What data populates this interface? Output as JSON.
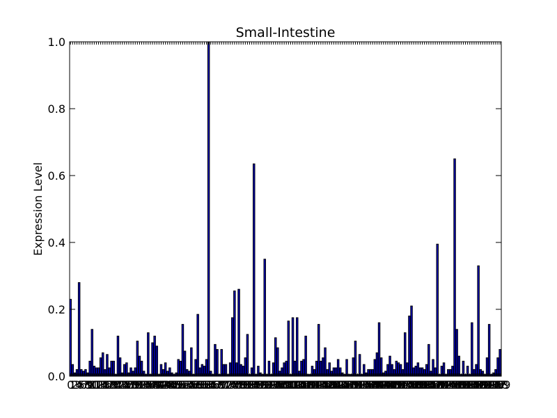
{
  "chart_data": {
    "type": "bar",
    "title": "Small-Intestine",
    "xlabel": "",
    "ylabel": "Expression Level",
    "ylim": [
      0,
      1.0
    ],
    "yticks": [
      "0.0",
      "0.2",
      "0.4",
      "0.6",
      "0.8",
      "1.0"
    ],
    "ytick_values": [
      0,
      0.2,
      0.4,
      0.6,
      0.8,
      1.0
    ],
    "grid": false,
    "legend": "none",
    "bar_color": "#0000bf",
    "edge_color": "#000000",
    "values": [
      0.23,
      0.035,
      0.01,
      0.02,
      0.28,
      0.02,
      0.015,
      0.02,
      0.01,
      0.045,
      0.14,
      0.03,
      0.025,
      0.025,
      0.055,
      0.07,
      0.02,
      0.065,
      0.025,
      0.045,
      0.045,
      0.005,
      0.12,
      0.055,
      0.01,
      0.035,
      0.04,
      0.01,
      0.025,
      0.015,
      0.025,
      0.105,
      0.06,
      0.045,
      0.015,
      0.005,
      0.13,
      0.005,
      0.1,
      0.12,
      0.09,
      0.005,
      0.035,
      0.02,
      0.04,
      0.015,
      0.025,
      0.01,
      0.005,
      0.01,
      0.05,
      0.045,
      0.155,
      0.075,
      0.02,
      0.015,
      0.085,
      0.005,
      0.05,
      0.185,
      0.025,
      0.035,
      0.03,
      0.05,
      1.0,
      0.015,
      0.005,
      0.095,
      0.08,
      0.005,
      0.08,
      0.035,
      0.035,
      0.005,
      0.04,
      0.175,
      0.255,
      0.04,
      0.26,
      0.035,
      0.03,
      0.055,
      0.125,
      0.005,
      0.025,
      0.635,
      0.005,
      0.03,
      0.01,
      0.005,
      0.35,
      0.005,
      0.045,
      0.005,
      0.04,
      0.115,
      0.085,
      0.015,
      0.025,
      0.04,
      0.045,
      0.165,
      0.005,
      0.175,
      0.045,
      0.175,
      0.015,
      0.045,
      0.05,
      0.12,
      0.005,
      0.005,
      0.03,
      0.02,
      0.045,
      0.155,
      0.045,
      0.055,
      0.085,
      0.02,
      0.04,
      0.015,
      0.025,
      0.025,
      0.05,
      0.025,
      0.01,
      0.005,
      0.05,
      0.005,
      0.005,
      0.055,
      0.105,
      0.005,
      0.065,
      0.005,
      0.035,
      0.01,
      0.02,
      0.02,
      0.02,
      0.05,
      0.07,
      0.16,
      0.055,
      0.01,
      0.015,
      0.035,
      0.06,
      0.035,
      0.02,
      0.045,
      0.04,
      0.035,
      0.02,
      0.13,
      0.04,
      0.18,
      0.21,
      0.025,
      0.03,
      0.04,
      0.025,
      0.025,
      0.02,
      0.035,
      0.095,
      0.015,
      0.05,
      0.025,
      0.395,
      0.005,
      0.03,
      0.04,
      0.005,
      0.02,
      0.02,
      0.03,
      0.65,
      0.14,
      0.06,
      0.005,
      0.045,
      0.005,
      0.03,
      0.005,
      0.16,
      0.02,
      0.035,
      0.33,
      0.02,
      0.015,
      0.005,
      0.055,
      0.155,
      0.005,
      0.01,
      0.02,
      0.055,
      0.08
    ],
    "xtick_labels": [
      "0",
      "1",
      "2",
      "3",
      "4",
      "5",
      "6",
      "7",
      "8",
      "9",
      "10",
      "11",
      "12",
      "13",
      "14",
      "15",
      "16",
      "17",
      "18",
      "19",
      "20",
      "21",
      "22",
      "23",
      "24",
      "25",
      "26",
      "27",
      "28",
      "29",
      "30",
      "31",
      "32",
      "33",
      "34",
      "35",
      "36",
      "37",
      "38",
      "39",
      "40",
      "41",
      "42",
      "43",
      "44",
      "45",
      "46",
      "47",
      "48",
      "49",
      "50",
      "51",
      "52",
      "53",
      "54",
      "55",
      "56",
      "57",
      "58",
      "59",
      "60",
      "61",
      "62",
      "63",
      "64",
      "65",
      "66",
      "67",
      "68",
      "69",
      "70",
      "71",
      "72",
      "73",
      "74",
      "75",
      "76",
      "77",
      "78",
      "79",
      "80",
      "81",
      "82",
      "83",
      "84",
      "85",
      "86",
      "87",
      "88",
      "89",
      "90",
      "91",
      "92",
      "93",
      "94",
      "95",
      "96",
      "97",
      "98",
      "99",
      "100",
      "101",
      "102",
      "103",
      "104",
      "105",
      "106",
      "107",
      "108",
      "109",
      "110",
      "111",
      "112",
      "113",
      "114",
      "115",
      "116",
      "117",
      "118",
      "119",
      "120",
      "121",
      "122",
      "123",
      "124",
      "125",
      "126",
      "127",
      "128",
      "129",
      "130",
      "131",
      "132",
      "133",
      "134",
      "135",
      "136",
      "137",
      "138",
      "139",
      "140",
      "141",
      "142",
      "143",
      "144",
      "145",
      "146",
      "147",
      "148",
      "149",
      "150",
      "151",
      "152",
      "153",
      "154",
      "155",
      "156",
      "157",
      "158",
      "159",
      "160",
      "161",
      "162",
      "163",
      "164",
      "165",
      "166",
      "167",
      "168",
      "169",
      "170",
      "171",
      "172",
      "173",
      "174",
      "175",
      "176",
      "177",
      "178",
      "179",
      "180",
      "181",
      "182",
      "183",
      "184",
      "185",
      "186",
      "187",
      "188",
      "189",
      "190",
      "191",
      "192",
      "193",
      "194",
      "195",
      "196",
      "197",
      "198",
      "199"
    ]
  }
}
